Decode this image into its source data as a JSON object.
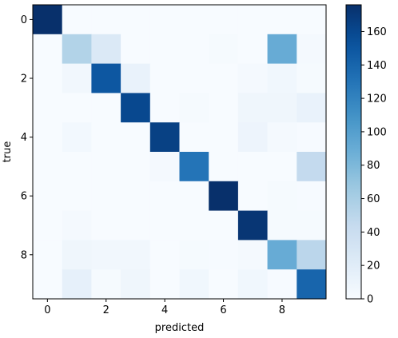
{
  "chart_data": {
    "type": "heatmap",
    "title": "",
    "xlabel": "predicted",
    "ylabel": "true",
    "x_tick_labels": [
      "0",
      "2",
      "4",
      "6",
      "8"
    ],
    "x_tick_positions": [
      0,
      2,
      4,
      6,
      8
    ],
    "y_tick_labels": [
      "0",
      "2",
      "4",
      "6",
      "8"
    ],
    "y_tick_positions": [
      0,
      2,
      4,
      6,
      8
    ],
    "colormap": "Blues",
    "vmin": 0,
    "vmax": 176,
    "colorbar_ticks": [
      0,
      20,
      40,
      60,
      80,
      100,
      120,
      140,
      160
    ],
    "matrix": [
      [
        176,
        0,
        0,
        0,
        0,
        0,
        0,
        0,
        0,
        0
      ],
      [
        0,
        55,
        25,
        0,
        0,
        0,
        2,
        0,
        90,
        3
      ],
      [
        0,
        5,
        150,
        12,
        0,
        0,
        0,
        3,
        6,
        2
      ],
      [
        0,
        0,
        0,
        160,
        0,
        2,
        0,
        7,
        7,
        12
      ],
      [
        0,
        4,
        0,
        0,
        165,
        0,
        0,
        9,
        3,
        1
      ],
      [
        0,
        0,
        0,
        0,
        3,
        130,
        0,
        0,
        0,
        45
      ],
      [
        0,
        0,
        0,
        0,
        0,
        0,
        176,
        0,
        2,
        1
      ],
      [
        0,
        3,
        0,
        0,
        0,
        0,
        0,
        172,
        2,
        2
      ],
      [
        0,
        7,
        5,
        5,
        0,
        2,
        1,
        3,
        90,
        50
      ],
      [
        0,
        15,
        2,
        7,
        0,
        6,
        0,
        6,
        1,
        140
      ]
    ]
  }
}
